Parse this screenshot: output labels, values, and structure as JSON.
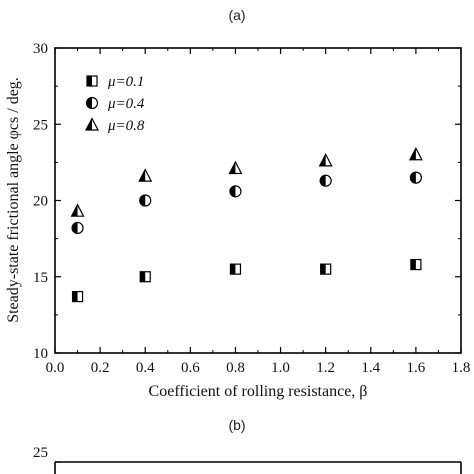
{
  "chart_data": [
    {
      "panel_label": "(a)",
      "type": "scatter",
      "xlabel_html": "Coefficient of rolling resistance, β",
      "ylabel_html": "Steady-state frictional angle φcs / deg.",
      "xlim": [
        0.0,
        1.8
      ],
      "ylim": [
        10,
        30
      ],
      "x_ticks": [
        0.0,
        0.2,
        0.4,
        0.6,
        0.8,
        1.0,
        1.2,
        1.4,
        1.6,
        1.8
      ],
      "x_tick_labels": [
        "0.0",
        "0.2",
        "0.4",
        "0.6",
        "0.8",
        "1.0",
        "1.2",
        "1.4",
        "1.6",
        "1.8"
      ],
      "y_ticks": [
        10,
        15,
        20,
        25,
        30
      ],
      "y_tick_labels": [
        "10",
        "15",
        "20",
        "25",
        "30"
      ],
      "legend_position": "top-left",
      "grid": false,
      "series": [
        {
          "name": "μ=0.1",
          "marker": "square-half",
          "x": [
            0.1,
            0.4,
            0.8,
            1.2,
            1.6
          ],
          "y": [
            13.7,
            15.0,
            15.5,
            15.5,
            15.8
          ]
        },
        {
          "name": "μ=0.4",
          "marker": "circle-half",
          "x": [
            0.1,
            0.4,
            0.8,
            1.2,
            1.6
          ],
          "y": [
            18.2,
            20.0,
            20.6,
            21.3,
            21.5
          ]
        },
        {
          "name": "μ=0.8",
          "marker": "triangle-half",
          "x": [
            0.1,
            0.4,
            0.8,
            1.2,
            1.6
          ],
          "y": [
            19.3,
            21.6,
            22.1,
            22.6,
            23.0
          ]
        }
      ]
    },
    {
      "panel_label": "(b)",
      "type": "scatter",
      "y_tick_labels": [
        "25"
      ]
    }
  ]
}
